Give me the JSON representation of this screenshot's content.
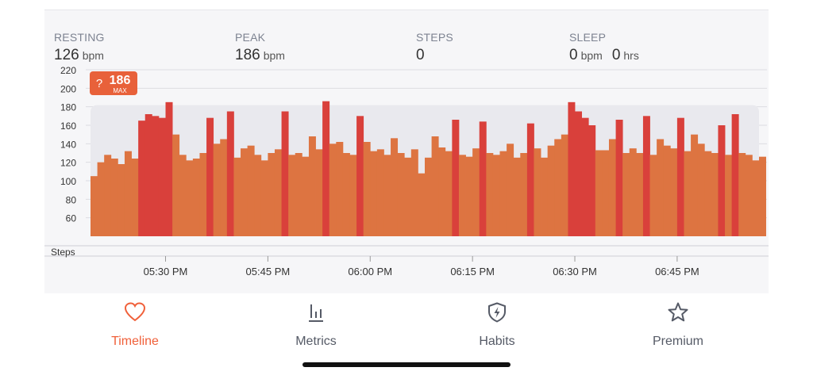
{
  "stats": [
    {
      "label": "RESTING",
      "values": [
        {
          "num": "126",
          "unit": "bpm"
        }
      ]
    },
    {
      "label": "PEAK",
      "values": [
        {
          "num": "186",
          "unit": "bpm"
        }
      ]
    },
    {
      "label": "STEPS",
      "values": [
        {
          "num": "0",
          "unit": ""
        }
      ]
    },
    {
      "label": "SLEEP",
      "values": [
        {
          "num": "0",
          "unit": "bpm"
        },
        {
          "num": "0",
          "unit": "hrs"
        }
      ]
    }
  ],
  "chart_data": {
    "type": "area",
    "ylim": [
      40,
      220
    ],
    "yticks": [
      60,
      80,
      100,
      120,
      140,
      160,
      180,
      200,
      220
    ],
    "xlim": [
      "05:19 PM",
      "06:57 PM"
    ],
    "xticks": [
      "05:30 PM",
      "05:45 PM",
      "06:00 PM",
      "06:15 PM",
      "06:30 PM",
      "06:45 PM"
    ],
    "steps_label": "Steps",
    "max_badge": {
      "icon": "?",
      "value": "186",
      "label": "MAX"
    },
    "colors": {
      "normal": "#dd7441",
      "high": "#d9403b",
      "zone": "#e9e9ee"
    },
    "series": [
      {
        "x": [
          "05:19 PM",
          "05:20 PM",
          "05:21 PM",
          "05:22 PM",
          "05:23 PM",
          "05:24 PM",
          "05:25 PM",
          "05:26 PM",
          "05:27 PM",
          "05:28 PM",
          "05:29 PM",
          "05:30 PM",
          "05:31 PM",
          "05:32 PM",
          "05:33 PM",
          "05:34 PM",
          "05:35 PM",
          "05:36 PM",
          "05:37 PM",
          "05:38 PM",
          "05:39 PM",
          "05:40 PM",
          "05:41 PM",
          "05:42 PM",
          "05:43 PM",
          "05:44 PM",
          "05:45 PM",
          "05:46 PM",
          "05:47 PM",
          "05:48 PM",
          "05:49 PM",
          "05:50 PM",
          "05:51 PM",
          "05:52 PM",
          "05:53 PM",
          "05:54 PM",
          "05:55 PM",
          "05:56 PM",
          "05:57 PM",
          "05:58 PM",
          "05:59 PM",
          "06:00 PM",
          "06:01 PM",
          "06:02 PM",
          "06:03 PM",
          "06:04 PM",
          "06:05 PM",
          "06:06 PM",
          "06:07 PM",
          "06:08 PM",
          "06:09 PM",
          "06:10 PM",
          "06:11 PM",
          "06:12 PM",
          "06:13 PM",
          "06:14 PM",
          "06:15 PM",
          "06:16 PM",
          "06:17 PM",
          "06:18 PM",
          "06:19 PM",
          "06:20 PM",
          "06:21 PM",
          "06:22 PM",
          "06:23 PM",
          "06:24 PM",
          "06:25 PM",
          "06:26 PM",
          "06:27 PM",
          "06:28 PM",
          "06:29 PM",
          "06:30 PM",
          "06:31 PM",
          "06:32 PM",
          "06:33 PM",
          "06:34 PM",
          "06:35 PM",
          "06:36 PM",
          "06:37 PM",
          "06:38 PM",
          "06:39 PM",
          "06:40 PM",
          "06:41 PM",
          "06:42 PM",
          "06:43 PM",
          "06:44 PM",
          "06:45 PM",
          "06:46 PM",
          "06:47 PM",
          "06:48 PM",
          "06:49 PM",
          "06:50 PM",
          "06:51 PM",
          "06:52 PM",
          "06:53 PM",
          "06:54 PM",
          "06:55 PM",
          "06:56 PM",
          "06:57 PM"
        ],
        "values": [
          105,
          120,
          128,
          124,
          118,
          132,
          124,
          165,
          172,
          170,
          168,
          185,
          150,
          128,
          122,
          124,
          130,
          168,
          140,
          145,
          175,
          125,
          135,
          138,
          128,
          122,
          130,
          134,
          175,
          128,
          130,
          126,
          148,
          134,
          186,
          140,
          142,
          130,
          128,
          170,
          142,
          132,
          134,
          128,
          146,
          130,
          125,
          134,
          108,
          125,
          148,
          136,
          132,
          166,
          128,
          126,
          135,
          164,
          130,
          128,
          132,
          140,
          125,
          130,
          162,
          135,
          125,
          138,
          145,
          150,
          185,
          175,
          168,
          160,
          133,
          133,
          145,
          166,
          130,
          135,
          130,
          170,
          128,
          145,
          138,
          135,
          168,
          132,
          150,
          140,
          132,
          130,
          160,
          128,
          172,
          130,
          128,
          122,
          126
        ]
      }
    ]
  },
  "tabs": [
    {
      "label": "Timeline",
      "icon": "heart-icon",
      "active": true
    },
    {
      "label": "Metrics",
      "icon": "bar-chart-icon",
      "active": false
    },
    {
      "label": "Habits",
      "icon": "shield-bolt-icon",
      "active": false
    },
    {
      "label": "Premium",
      "icon": "star-icon",
      "active": false
    }
  ]
}
